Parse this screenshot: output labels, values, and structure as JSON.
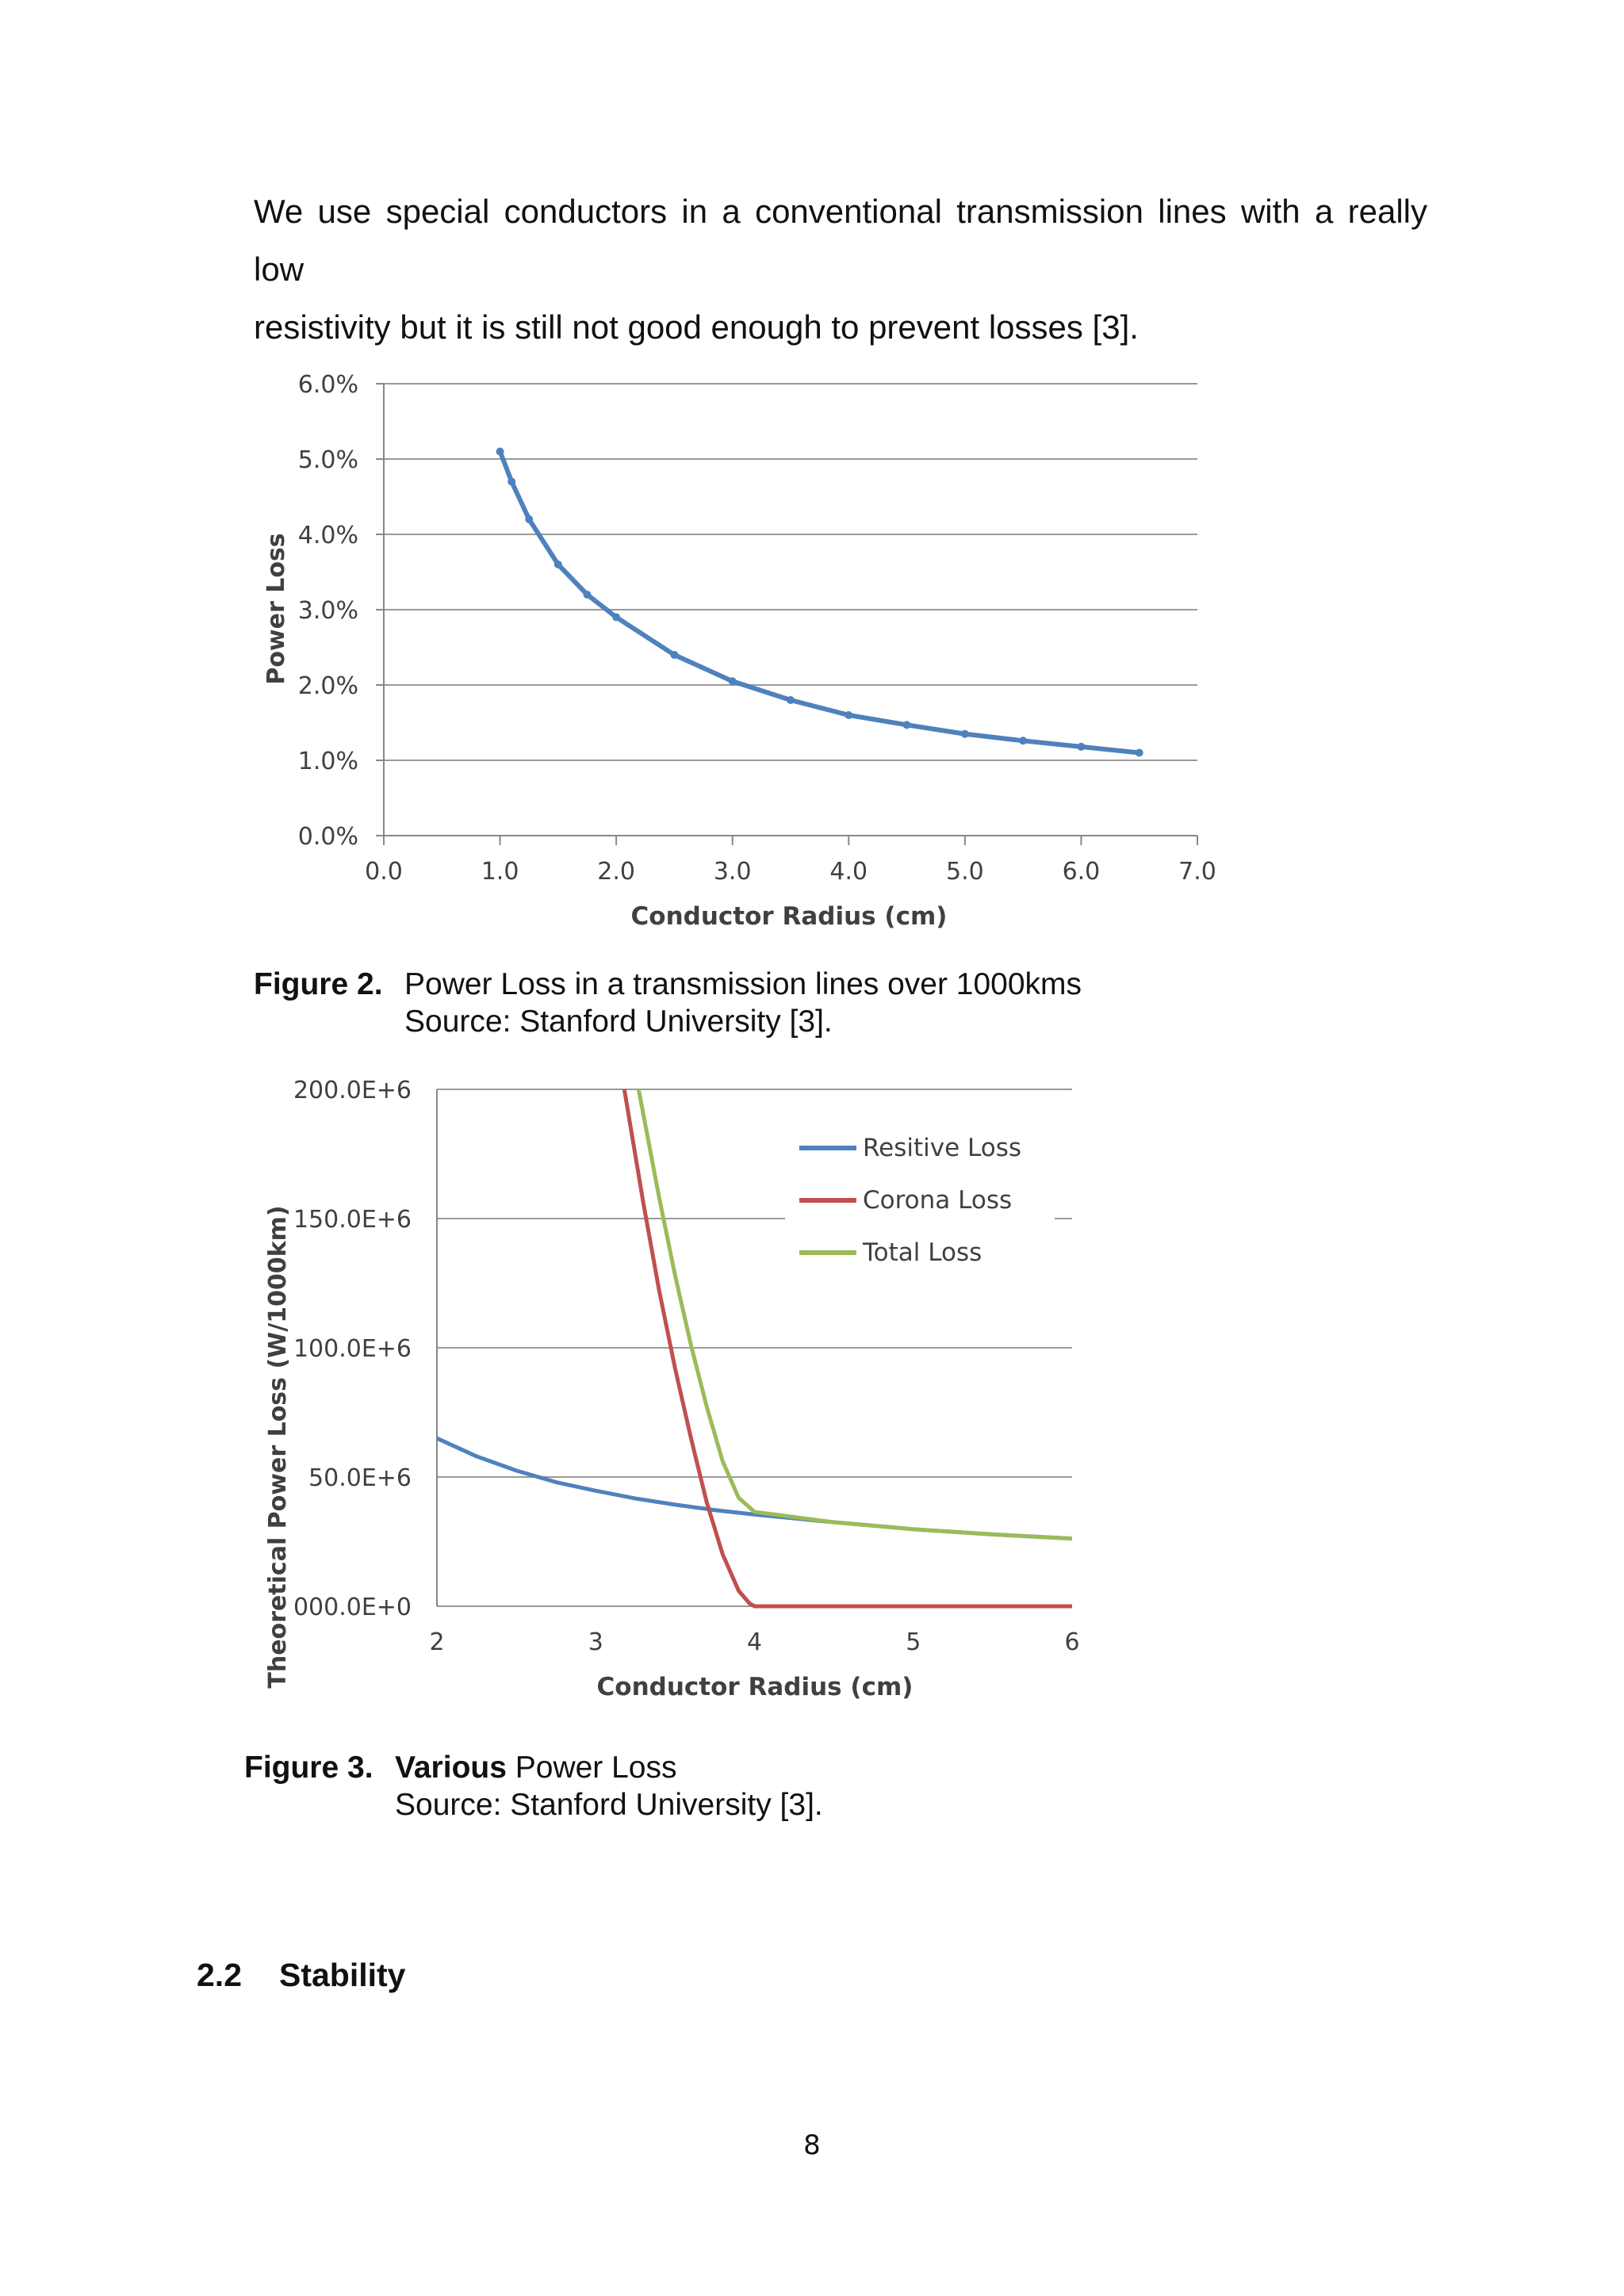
{
  "paragraph": {
    "line1": "We use special conductors in a conventional transmission lines with a really low",
    "line2": "resistivity but it is still not good enough to prevent losses [3]."
  },
  "chart_data": [
    {
      "type": "scatter",
      "xlabel": "Conductor Radius (cm)",
      "ylabel": "Power Loss",
      "xlim": [
        0,
        7
      ],
      "ylim": [
        0,
        6
      ],
      "x_ticks": [
        "0.0",
        "1.0",
        "2.0",
        "3.0",
        "4.0",
        "5.0",
        "6.0",
        "7.0"
      ],
      "y_ticks": [
        "0.0%",
        "1.0%",
        "2.0%",
        "3.0%",
        "4.0%",
        "5.0%",
        "6.0%"
      ],
      "grid": "horizontal",
      "color": "#4f81bd",
      "series": [
        {
          "x": [
            1.0,
            1.1,
            1.25,
            1.5,
            1.75,
            2.0,
            2.5,
            3.0,
            3.5,
            4.0,
            4.5,
            5.0,
            5.5,
            6.0,
            6.5
          ],
          "y": [
            5.1,
            4.7,
            4.2,
            3.6,
            3.2,
            2.9,
            2.4,
            2.05,
            1.8,
            1.6,
            1.47,
            1.35,
            1.26,
            1.18,
            1.1
          ]
        }
      ]
    },
    {
      "type": "line",
      "xlabel": "Conductor Radius (cm)",
      "ylabel": "Theoretical Power Loss (W/1000km)",
      "xlim": [
        2,
        6
      ],
      "ylim": [
        0,
        200000000
      ],
      "x_ticks": [
        "2",
        "3",
        "4",
        "5",
        "6"
      ],
      "y_ticks": [
        "000.0E+0",
        "50.0E+6",
        "100.0E+6",
        "150.0E+6",
        "200.0E+6"
      ],
      "grid": "horizontal",
      "legend": "top-right",
      "series": [
        {
          "name": "Resitive Loss",
          "color": "#4f81bd",
          "x": [
            2.0,
            2.25,
            2.5,
            2.75,
            3.0,
            3.25,
            3.5,
            3.75,
            4.0,
            4.5,
            5.0,
            5.5,
            6.0
          ],
          "y": [
            65000000,
            58000000,
            52500000,
            48000000,
            44700000,
            41700000,
            39300000,
            37200000,
            35500000,
            32500000,
            29800000,
            27800000,
            26200000
          ]
        },
        {
          "name": "Corona Loss",
          "color": "#c0504d",
          "x": [
            3.18,
            3.3,
            3.4,
            3.5,
            3.6,
            3.7,
            3.8,
            3.9,
            3.97,
            4.0,
            5.0,
            6.0
          ],
          "y": [
            200000000,
            156000000,
            122000000,
            92000000,
            65000000,
            40000000,
            20000000,
            6000000,
            1000000,
            0,
            0,
            0
          ]
        },
        {
          "name": "Total Loss",
          "color": "#9bbb59",
          "x": [
            3.27,
            3.4,
            3.5,
            3.6,
            3.7,
            3.8,
            3.9,
            4.0,
            4.5,
            5.0,
            5.5,
            6.0
          ],
          "y": [
            200000000,
            158000000,
            128000000,
            101000000,
            77000000,
            56000000,
            42000000,
            36500000,
            32500000,
            29800000,
            27800000,
            26200000
          ]
        }
      ]
    }
  ],
  "figure2": {
    "label": "Figure 2.",
    "line1": "Power Loss in a transmission lines over 1000kms",
    "line2": "Source: Stanford University [3]."
  },
  "figure3": {
    "label": "Figure 3.",
    "bold": "Various",
    "rest": " Power Loss",
    "line2": "Source: Stanford University [3]."
  },
  "section": {
    "number": "2.2",
    "title": "Stability"
  },
  "page_number": "8"
}
